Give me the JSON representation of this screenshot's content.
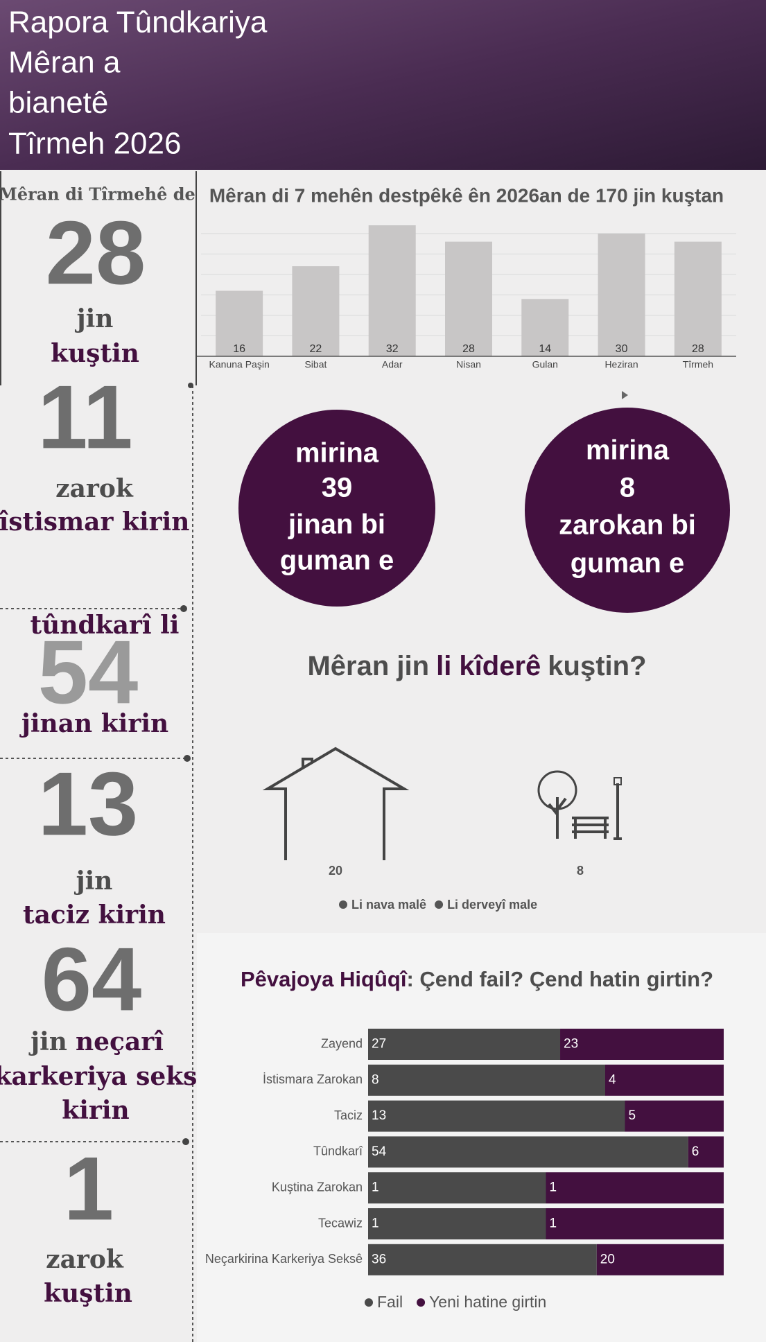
{
  "header": {
    "title_lines": [
      "Rapora Tûndkariya",
      "Mêran a",
      "bianetê",
      "Tîrmeh 2026"
    ]
  },
  "stats": [
    {
      "label": "Mêran di Tîrmehê de",
      "number": 28,
      "lines": [
        [
          "jin"
        ],
        [
          "kuştin"
        ]
      ]
    },
    {
      "number": 11,
      "lines": [
        [
          "zarok"
        ],
        [
          "îstismar kirin"
        ]
      ]
    },
    {
      "label": "tûndkarî li",
      "number": 54,
      "lines": [
        [
          "jinan kirin"
        ]
      ]
    },
    {
      "number": 13,
      "lines": [
        [
          "jin"
        ],
        [
          "taciz kirin"
        ]
      ]
    },
    {
      "number": 64,
      "lines": [
        [
          "jin",
          "neçarî"
        ],
        [
          "karkeriya seks"
        ],
        [
          "kirin"
        ]
      ]
    },
    {
      "number": 1,
      "lines": [
        [
          "zarok"
        ],
        [
          "kuştin"
        ]
      ]
    }
  ],
  "circles": [
    {
      "top": "mirina",
      "value": 39,
      "bottom": [
        "jinan bi",
        "guman e"
      ]
    },
    {
      "top": "mirina",
      "value": 8,
      "bottom": [
        "zarokan bi",
        "guman e"
      ]
    }
  ],
  "chart_data": [
    {
      "type": "bar",
      "orientation": "vertical",
      "title": "Mêran di 7 mehên destpêkê ên 2026an de 170 jin kuştan",
      "categories": [
        "Kanuna Paşin",
        "Sibat",
        "Adar",
        "Nisan",
        "Gulan",
        "Heziran",
        "Tîrmeh"
      ],
      "values": [
        16,
        22,
        32,
        28,
        14,
        30,
        28
      ],
      "color": "#c8c6c6",
      "ylim": [
        0,
        32
      ],
      "yticks": [
        0,
        5,
        10,
        15,
        20,
        25,
        30
      ],
      "grid": true
    },
    {
      "type": "pictogram",
      "title_parts": [
        "Mêran jin",
        "li kîderê",
        "kuştin?"
      ],
      "categories": [
        "Li nava malê",
        "Li derveyî male"
      ],
      "values": [
        20,
        8
      ],
      "color": "#555555"
    },
    {
      "type": "bar",
      "orientation": "horizontal",
      "stacked": "percent",
      "title_parts": [
        "Pêvajoya Hiqûqî",
        ": Çend fail? Çend hatin girtin?"
      ],
      "categories": [
        "Zayend",
        "İstismara Zarokan",
        "Taciz",
        "Tûndkarî",
        "Kuştina Zarokan",
        "Tecawiz",
        "Neçarkirina Karkeriya Seksê"
      ],
      "series": [
        {
          "name": "Fail",
          "color": "#4a4a4a",
          "values": [
            27,
            8,
            13,
            54,
            1,
            1,
            36
          ]
        },
        {
          "name": "Yeni hatine girtin",
          "color": "#43103f",
          "values": [
            23,
            4,
            5,
            6,
            1,
            1,
            20
          ]
        }
      ]
    }
  ]
}
